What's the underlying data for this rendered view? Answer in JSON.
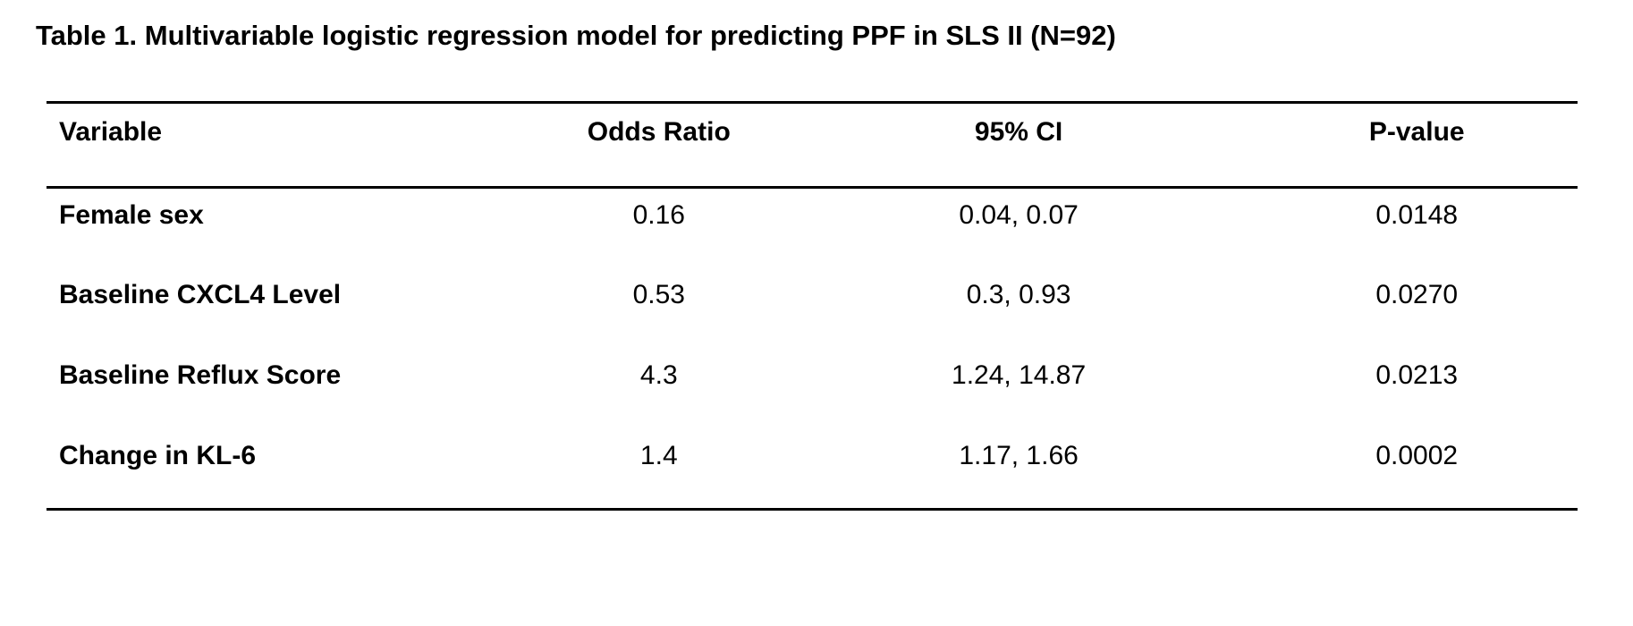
{
  "table": {
    "title": "Table 1. Multivariable logistic regression model for predicting PPF in SLS II (N=92)",
    "columns": [
      "Variable",
      "Odds Ratio",
      "95% CI",
      "P-value"
    ],
    "rows": [
      {
        "variable": "Female sex",
        "odds_ratio": "0.16",
        "ci": "0.04, 0.07",
        "p_value": "0.0148"
      },
      {
        "variable": "Baseline CXCL4 Level",
        "odds_ratio": "0.53",
        "ci": "0.3, 0.93",
        "p_value": "0.0270"
      },
      {
        "variable": "Baseline Reflux Score",
        "odds_ratio": "4.3",
        "ci": "1.24, 14.87",
        "p_value": "0.0213"
      },
      {
        "variable": "Change in KL-6",
        "odds_ratio": "1.4",
        "ci": "1.17, 1.66",
        "p_value": "0.0002"
      }
    ]
  },
  "chart_data": {
    "type": "table",
    "title": "Table 1. Multivariable logistic regression model for predicting PPF in SLS II (N=92)",
    "columns": [
      "Variable",
      "Odds Ratio",
      "95% CI",
      "P-value"
    ],
    "rows": [
      [
        "Female sex",
        "0.16",
        "0.04, 0.07",
        "0.0148"
      ],
      [
        "Baseline CXCL4 Level",
        "0.53",
        "0.3, 0.93",
        "0.0270"
      ],
      [
        "Baseline Reflux Score",
        "4.3",
        "1.24, 14.87",
        "0.0213"
      ],
      [
        "Change in KL-6",
        "1.4",
        "1.17, 1.66",
        "0.0002"
      ]
    ]
  },
  "colors": {
    "text": "#000000",
    "background": "#ffffff",
    "rule": "#000000"
  }
}
